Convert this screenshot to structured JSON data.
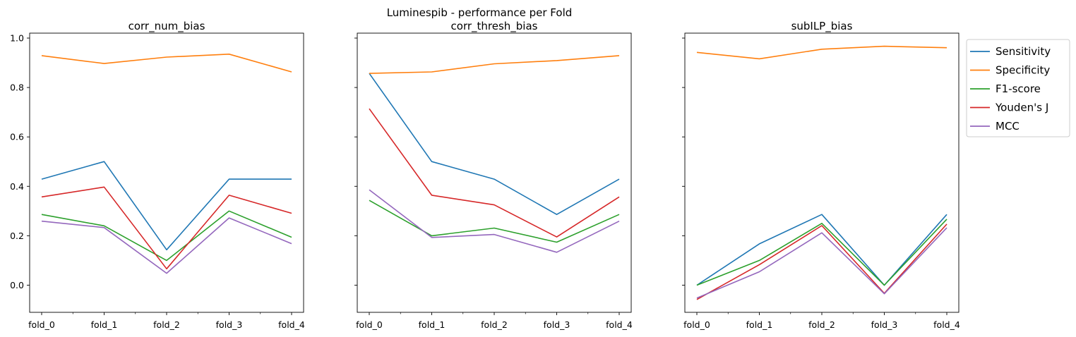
{
  "figure": {
    "suptitle": "Luminespib - performance per Fold"
  },
  "chart_data": [
    {
      "type": "line",
      "title": "corr_num_bias",
      "categories": [
        "fold_0",
        "fold_1",
        "fold_2",
        "fold_3",
        "fold_4"
      ],
      "ylim": [
        -0.11,
        1.02
      ],
      "yticks": [
        0.0,
        0.2,
        0.4,
        0.6,
        0.8,
        1.0
      ],
      "ytick_labels": [
        "0.0",
        "0.2",
        "0.4",
        "0.6",
        "0.8",
        "1.0"
      ],
      "show_yticklabels": true,
      "series": [
        {
          "name": "Sensitivity",
          "color": "#1f77b4",
          "values": [
            0.429,
            0.5,
            0.143,
            0.429,
            0.429
          ]
        },
        {
          "name": "Specificity",
          "color": "#ff7f0e",
          "values": [
            0.929,
            0.897,
            0.923,
            0.935,
            0.863
          ]
        },
        {
          "name": "F1-score",
          "color": "#2ca02c",
          "values": [
            0.286,
            0.24,
            0.1,
            0.3,
            0.194
          ]
        },
        {
          "name": "Youden's J",
          "color": "#d62728",
          "values": [
            0.357,
            0.397,
            0.066,
            0.364,
            0.291
          ]
        },
        {
          "name": "MCC",
          "color": "#9467bd",
          "values": [
            0.259,
            0.233,
            0.048,
            0.272,
            0.168
          ]
        }
      ]
    },
    {
      "type": "line",
      "title": "corr_thresh_bias",
      "categories": [
        "fold_0",
        "fold_1",
        "fold_2",
        "fold_3",
        "fold_4"
      ],
      "ylim": [
        -0.11,
        1.02
      ],
      "yticks": [
        0.0,
        0.2,
        0.4,
        0.6,
        0.8,
        1.0
      ],
      "ytick_labels": [
        "0.0",
        "0.2",
        "0.4",
        "0.6",
        "0.8",
        "1.0"
      ],
      "show_yticklabels": false,
      "series": [
        {
          "name": "Sensitivity",
          "color": "#1f77b4",
          "values": [
            0.857,
            0.5,
            0.429,
            0.286,
            0.429
          ]
        },
        {
          "name": "Specificity",
          "color": "#ff7f0e",
          "values": [
            0.857,
            0.863,
            0.896,
            0.909,
            0.929
          ]
        },
        {
          "name": "F1-score",
          "color": "#2ca02c",
          "values": [
            0.343,
            0.2,
            0.231,
            0.174,
            0.286
          ]
        },
        {
          "name": "Youden's J",
          "color": "#d62728",
          "values": [
            0.714,
            0.364,
            0.325,
            0.195,
            0.357
          ]
        },
        {
          "name": "MCC",
          "color": "#9467bd",
          "values": [
            0.386,
            0.193,
            0.205,
            0.133,
            0.259
          ]
        }
      ]
    },
    {
      "type": "line",
      "title": "subILP_bias",
      "categories": [
        "fold_0",
        "fold_1",
        "fold_2",
        "fold_3",
        "fold_4"
      ],
      "ylim": [
        -0.11,
        1.02
      ],
      "yticks": [
        0.0,
        0.2,
        0.4,
        0.6,
        0.8,
        1.0
      ],
      "ytick_labels": [
        "0.0",
        "0.2",
        "0.4",
        "0.6",
        "0.8",
        "1.0"
      ],
      "show_yticklabels": false,
      "series": [
        {
          "name": "Sensitivity",
          "color": "#1f77b4",
          "values": [
            0.0,
            0.167,
            0.286,
            0.0,
            0.286
          ]
        },
        {
          "name": "Specificity",
          "color": "#ff7f0e",
          "values": [
            0.942,
            0.916,
            0.955,
            0.967,
            0.961
          ]
        },
        {
          "name": "F1-score",
          "color": "#2ca02c",
          "values": [
            0.0,
            0.1,
            0.25,
            0.0,
            0.267
          ]
        },
        {
          "name": "Youden's J",
          "color": "#d62728",
          "values": [
            -0.058,
            0.083,
            0.241,
            -0.033,
            0.247
          ]
        },
        {
          "name": "MCC",
          "color": "#9467bd",
          "values": [
            -0.052,
            0.054,
            0.212,
            -0.035,
            0.232
          ]
        }
      ]
    }
  ],
  "legend": {
    "placement": "upper-right outside",
    "entries": [
      "Sensitivity",
      "Specificity",
      "F1-score",
      "Youden's J",
      "MCC"
    ],
    "colors": [
      "#1f77b4",
      "#ff7f0e",
      "#2ca02c",
      "#d62728",
      "#9467bd"
    ]
  }
}
